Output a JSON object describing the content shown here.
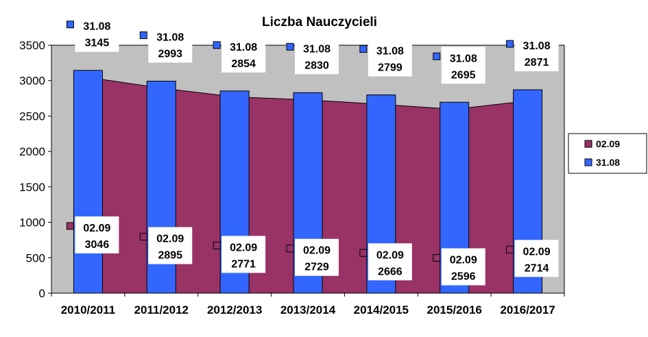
{
  "chart_data": {
    "type": "bar",
    "title": "Liczba Nauczycieli",
    "categories": [
      "2010/2011",
      "2011/2012",
      "2012/2013",
      "2013/2014",
      "2014/2015",
      "2015/2016",
      "2016/2017"
    ],
    "series": [
      {
        "name": "02.09",
        "kind": "area",
        "color": "#993366",
        "values": [
          3046,
          2895,
          2771,
          2729,
          2666,
          2596,
          2714
        ]
      },
      {
        "name": "31.08",
        "kind": "bar",
        "color": "#3366FF",
        "values": [
          3145,
          2993,
          2854,
          2830,
          2799,
          2695,
          2871
        ]
      }
    ],
    "ylim": [
      0,
      3500
    ],
    "yticks": [
      0,
      500,
      1000,
      1500,
      2000,
      2500,
      3000,
      3500
    ],
    "ytick_labels": [
      "0",
      "500",
      "1000",
      "1500",
      "2000",
      "2500",
      "3000",
      "3500"
    ],
    "plot_background": "#C0C0C0",
    "grid": false,
    "legend": {
      "placement": "right",
      "entries": [
        {
          "label": "02.09",
          "color": "#993366"
        },
        {
          "label": "31.08",
          "color": "#3366FF"
        }
      ]
    }
  }
}
